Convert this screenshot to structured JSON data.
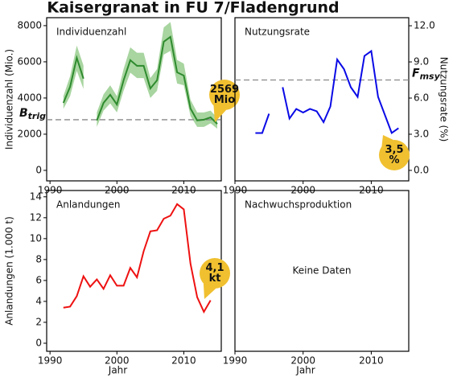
{
  "title": "Kaisergranat in FU 7/Fladengrund",
  "chart_data": [
    {
      "type": "line",
      "title": "Individuenzahl",
      "ylabel": "Individuenzahl (Mio.)",
      "yaxis_side": "left",
      "color": "#2e8b2e",
      "band_color": "#a8d5a0",
      "x": [
        1992,
        1993,
        1994,
        1995,
        1996,
        1997,
        1998,
        1999,
        2000,
        2001,
        2002,
        2003,
        2004,
        2005,
        2006,
        2007,
        2008,
        2009,
        2010,
        2011,
        2012,
        2013,
        2014,
        2015
      ],
      "values": [
        3730,
        4620,
        6220,
        5070,
        null,
        2760,
        3730,
        4180,
        3640,
        4980,
        6090,
        5780,
        5780,
        4530,
        4980,
        7110,
        7380,
        5420,
        5240,
        3420,
        2760,
        2800,
        2930,
        2569
      ],
      "band_lower": [
        3400,
        4100,
        5500,
        4500,
        null,
        2400,
        3300,
        3700,
        3200,
        4400,
        5400,
        5100,
        5100,
        4000,
        4400,
        6400,
        6600,
        4800,
        4700,
        3000,
        2400,
        2400,
        2600,
        2300
      ],
      "band_upper": [
        4100,
        5200,
        6900,
        5800,
        null,
        3200,
        4200,
        4700,
        4100,
        5600,
        6800,
        6500,
        6500,
        5100,
        5600,
        7900,
        8200,
        6100,
        5900,
        3900,
        3200,
        3200,
        3300,
        2900
      ],
      "xlim": [
        1989.5,
        2015.6
      ],
      "xticks": [
        1990,
        2000,
        2010
      ],
      "ylim": [
        -580,
        8440
      ],
      "yticks": [
        0,
        2000,
        4000,
        6000,
        8000
      ],
      "reference_line": {
        "value": 2800,
        "label": "B",
        "label_sub": "trig"
      },
      "annotation": [
        "2569",
        "Mio"
      ]
    },
    {
      "type": "line",
      "title": "Nutzungsrate",
      "ylabel": "Nutzungsrate (%)",
      "yaxis_side": "right",
      "color": "#0a0ae6",
      "x": [
        1993,
        1994,
        1995,
        1996,
        1997,
        1998,
        1999,
        2000,
        2001,
        2002,
        2003,
        2004,
        2005,
        2006,
        2007,
        2008,
        2009,
        2010,
        2011,
        2012,
        2013,
        2014
      ],
      "values": [
        3.1,
        3.1,
        4.7,
        null,
        6.9,
        4.3,
        5.1,
        4.8,
        5.1,
        4.9,
        4.0,
        5.3,
        9.2,
        8.4,
        6.9,
        6.1,
        9.5,
        9.9,
        6.1,
        4.6,
        3.1,
        3.5
      ],
      "xlim": [
        1990,
        2015.5
      ],
      "xticks": [
        1990,
        2000,
        2010
      ],
      "ylim": [
        -0.87,
        12.67
      ],
      "yticks": [
        {
          "value": 0,
          "label": "0.0"
        },
        {
          "value": 3,
          "label": "3.0"
        },
        {
          "value": 6,
          "label": "6.0"
        },
        {
          "value": 9,
          "label": "9.0"
        },
        {
          "value": 12,
          "label": "12.0"
        }
      ],
      "reference_line": {
        "value": 7.5,
        "label": "F",
        "label_sub": "msy"
      },
      "annotation": [
        "3,5",
        "%"
      ]
    },
    {
      "type": "line",
      "title": "Anlandungen",
      "ylabel": "Anlandungen (1.000 t)",
      "xlabel": "Jahr",
      "yaxis_side": "left",
      "color": "#ee1111",
      "x": [
        1992,
        1993,
        1994,
        1995,
        1996,
        1997,
        1998,
        1999,
        2000,
        2001,
        2002,
        2003,
        2004,
        2005,
        2006,
        2007,
        2008,
        2009,
        2010,
        2011,
        2012,
        2013,
        2014
      ],
      "values": [
        3.4,
        3.5,
        4.5,
        6.4,
        5.4,
        6.1,
        5.2,
        6.5,
        5.5,
        5.5,
        7.2,
        6.3,
        8.8,
        10.7,
        10.8,
        11.9,
        12.2,
        13.3,
        12.8,
        7.6,
        4.4,
        3.0,
        4.1
      ],
      "xlim": [
        1989.5,
        2015.6
      ],
      "xticks": [
        1990,
        2000,
        2010
      ],
      "ylim": [
        -0.77,
        14.6
      ],
      "yticks": [
        0,
        2,
        4,
        6,
        8,
        10,
        12,
        14
      ],
      "annotation": [
        "4,1",
        "kt"
      ]
    },
    {
      "type": "line",
      "title": "Nachwuchsproduktion",
      "xlabel": "Jahr",
      "note": "Keine Daten",
      "xlim": [
        1990,
        2015.5
      ],
      "xticks": [
        1990,
        2000,
        2010
      ]
    }
  ]
}
